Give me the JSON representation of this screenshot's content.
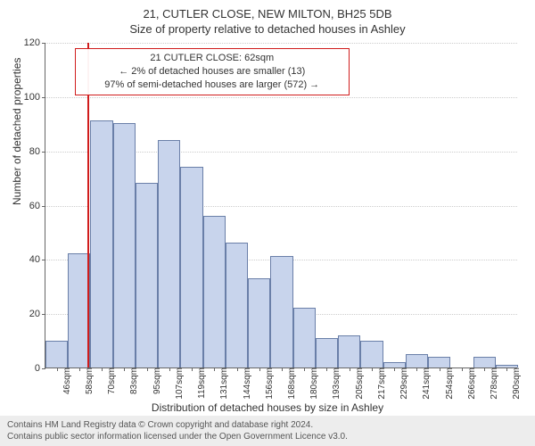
{
  "title": {
    "line1": "21, CUTLER CLOSE, NEW MILTON, BH25 5DB",
    "line2": "Size of property relative to detached houses in Ashley"
  },
  "axes": {
    "ylabel": "Number of detached properties",
    "xlabel": "Distribution of detached houses by size in Ashley",
    "ylabel_fontsize": 12,
    "xlabel_fontsize": 12,
    "ylim": [
      0,
      120
    ],
    "yticks": [
      0,
      20,
      40,
      60,
      80,
      100,
      120
    ],
    "tick_fontsize": 11,
    "grid_color": "#cccccc",
    "axis_color": "#666666"
  },
  "chart": {
    "type": "histogram",
    "bar_fill": "#c8d4ec",
    "bar_stroke": "#6a7fa8",
    "bar_width_ratio": 1.0,
    "background_color": "#ffffff",
    "categories": [
      "46sqm",
      "58sqm",
      "70sqm",
      "83sqm",
      "95sqm",
      "107sqm",
      "119sqm",
      "131sqm",
      "144sqm",
      "156sqm",
      "168sqm",
      "180sqm",
      "193sqm",
      "205sqm",
      "217sqm",
      "229sqm",
      "241sqm",
      "254sqm",
      "266sqm",
      "278sqm",
      "290sqm"
    ],
    "values": [
      10,
      42,
      91,
      90,
      68,
      84,
      74,
      56,
      46,
      33,
      41,
      22,
      11,
      12,
      10,
      2,
      5,
      4,
      0,
      4,
      1
    ]
  },
  "marker": {
    "color": "#d01c1c",
    "category_index_after": 1,
    "fraction_within_gap": 0.35
  },
  "annotation": {
    "border_color": "#d01c1c",
    "lines": [
      "21 CUTLER CLOSE: 62sqm",
      "← 2% of detached houses are smaller (13)",
      "97% of semi-detached houses are larger (572) →"
    ],
    "left_cat_index": 1.3,
    "top_value": 118,
    "width_cats": 12.2
  },
  "footer": {
    "line1": "Contains HM Land Registry data © Crown copyright and database right 2024.",
    "line2": "Contains public sector information licensed under the Open Government Licence v3.0."
  }
}
